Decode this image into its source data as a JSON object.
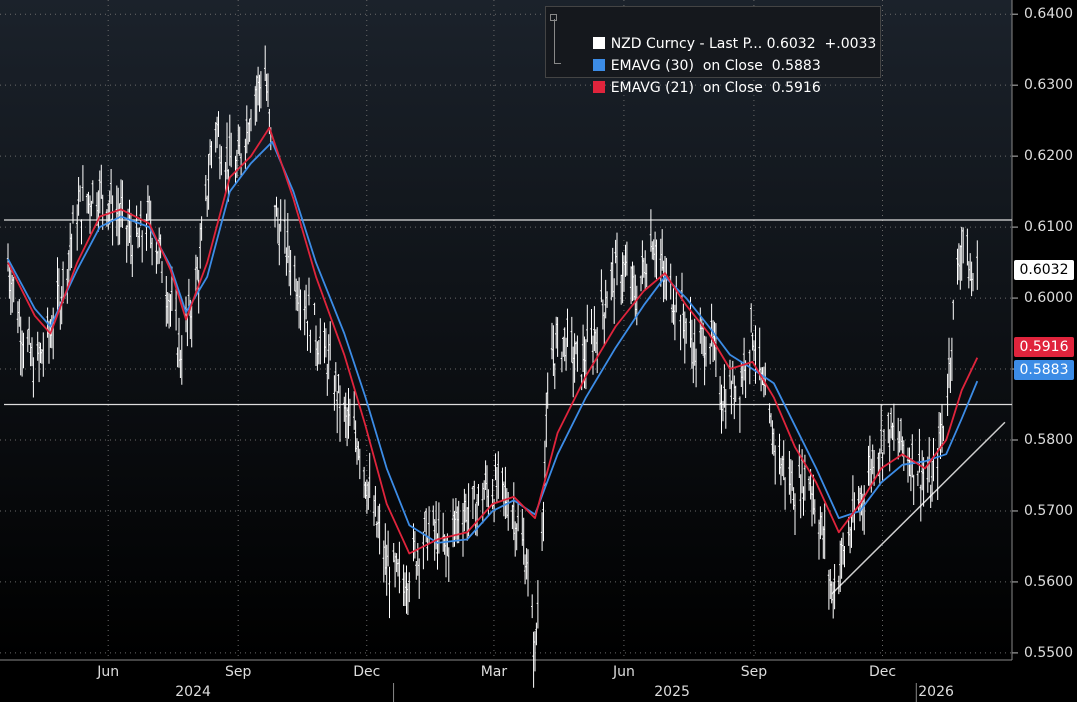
{
  "legend": {
    "row1": "NZD Curncy - Last P... 0.6032  +.0033",
    "row2": "EMAVG (30)  on Close  0.5883",
    "row3": "EMAVG (21)  on Close  0.5916"
  },
  "tags": {
    "last": "0.6032",
    "ema21": "0.5916",
    "ema30": "0.5883"
  },
  "colors": {
    "background": "#000000",
    "price": "#ffffff",
    "ema30": "#3c8ce6",
    "ema21": "#e0243c",
    "grid": "#6a6a6a",
    "reference_lines": "#dddddd"
  },
  "chart_data": {
    "type": "line",
    "title": "",
    "ylim": [
      0.549,
      0.642
    ],
    "y_ticks": [
      "0.5500",
      "0.5600",
      "0.5700",
      "0.5800",
      "0.5900",
      "0.6000",
      "0.6100",
      "0.6200",
      "0.6300",
      "0.6400"
    ],
    "x_ticks": [
      "Jun",
      "Sep",
      "Dec",
      "Mar",
      "Jun",
      "Sep",
      "Dec"
    ],
    "x_years": [
      "2024",
      "2025",
      "2026"
    ],
    "grid": true,
    "legend_position": "top-right",
    "horizontal_lines": [
      0.611,
      0.585
    ],
    "trendline": [
      {
        "x": "2025-11-05",
        "y": 0.5583
      },
      {
        "x": "2026-02-20",
        "y": 0.5825
      }
    ],
    "series": [
      {
        "name": "NZD Curncy - Last Price",
        "points": [
          [
            "2024-04-01",
            0.605
          ],
          [
            "2024-04-10",
            0.596
          ],
          [
            "2024-04-20",
            0.5895
          ],
          [
            "2024-05-01",
            0.595
          ],
          [
            "2024-05-10",
            0.602
          ],
          [
            "2024-05-20",
            0.612
          ],
          [
            "2024-06-01",
            0.615
          ],
          [
            "2024-06-10",
            0.614
          ],
          [
            "2024-06-20",
            0.611
          ],
          [
            "2024-07-01",
            0.607
          ],
          [
            "2024-07-10",
            0.611
          ],
          [
            "2024-07-20",
            0.604
          ],
          [
            "2024-08-01",
            0.592
          ],
          [
            "2024-08-06",
            0.596
          ],
          [
            "2024-08-15",
            0.605
          ],
          [
            "2024-08-25",
            0.625
          ],
          [
            "2024-09-01",
            0.62
          ],
          [
            "2024-09-10",
            0.618
          ],
          [
            "2024-09-20",
            0.627
          ],
          [
            "2024-09-30",
            0.632
          ],
          [
            "2024-10-08",
            0.611
          ],
          [
            "2024-10-20",
            0.604
          ],
          [
            "2024-11-01",
            0.597
          ],
          [
            "2024-11-15",
            0.59
          ],
          [
            "2024-11-25",
            0.583
          ],
          [
            "2024-12-05",
            0.58
          ],
          [
            "2024-12-15",
            0.57
          ],
          [
            "2024-12-25",
            0.562
          ],
          [
            "2025-01-05",
            0.5595
          ],
          [
            "2025-01-15",
            0.564
          ],
          [
            "2025-01-25",
            0.5675
          ],
          [
            "2025-02-05",
            0.564
          ],
          [
            "2025-02-15",
            0.57
          ],
          [
            "2025-02-25",
            0.57
          ],
          [
            "2025-03-05",
            0.573
          ],
          [
            "2025-03-15",
            0.573
          ],
          [
            "2025-03-25",
            0.57
          ],
          [
            "2025-04-03",
            0.563
          ],
          [
            "2025-04-09",
            0.549
          ],
          [
            "2025-04-20",
            0.592
          ],
          [
            "2025-05-01",
            0.594
          ],
          [
            "2025-05-10",
            0.59
          ],
          [
            "2025-05-20",
            0.594
          ],
          [
            "2025-06-01",
            0.602
          ],
          [
            "2025-06-10",
            0.604
          ],
          [
            "2025-06-20",
            0.6
          ],
          [
            "2025-07-01",
            0.609
          ],
          [
            "2025-07-10",
            0.602
          ],
          [
            "2025-07-20",
            0.599
          ],
          [
            "2025-08-01",
            0.592
          ],
          [
            "2025-08-10",
            0.595
          ],
          [
            "2025-08-20",
            0.586
          ],
          [
            "2025-09-01",
            0.588
          ],
          [
            "2025-09-10",
            0.596
          ],
          [
            "2025-09-20",
            0.583
          ],
          [
            "2025-10-01",
            0.576
          ],
          [
            "2025-10-10",
            0.573
          ],
          [
            "2025-10-20",
            0.575
          ],
          [
            "2025-11-01",
            0.564
          ],
          [
            "2025-11-05",
            0.5583
          ],
          [
            "2025-11-15",
            0.565
          ],
          [
            "2025-11-25",
            0.571
          ],
          [
            "2025-12-05",
            0.578
          ],
          [
            "2025-12-15",
            0.581
          ],
          [
            "2025-12-25",
            0.579
          ],
          [
            "2026-01-05",
            0.576
          ],
          [
            "2026-01-15",
            0.573
          ],
          [
            "2026-01-25",
            0.585
          ],
          [
            "2026-02-01",
            0.602
          ],
          [
            "2026-02-06",
            0.609
          ],
          [
            "2026-02-12",
            0.602
          ],
          [
            "2026-02-16",
            0.6032
          ]
        ]
      },
      {
        "name": "EMAVG (30) on Close",
        "points": [
          [
            "2024-04-01",
            0.6055
          ],
          [
            "2024-04-20",
            0.5985
          ],
          [
            "2024-05-01",
            0.596
          ],
          [
            "2024-05-20",
            0.604
          ],
          [
            "2024-06-05",
            0.61
          ],
          [
            "2024-06-20",
            0.6115
          ],
          [
            "2024-07-10",
            0.61
          ],
          [
            "2024-07-25",
            0.6045
          ],
          [
            "2024-08-05",
            0.598
          ],
          [
            "2024-08-20",
            0.603
          ],
          [
            "2024-09-05",
            0.615
          ],
          [
            "2024-09-20",
            0.619
          ],
          [
            "2024-10-05",
            0.622
          ],
          [
            "2024-10-20",
            0.615
          ],
          [
            "2024-11-05",
            0.605
          ],
          [
            "2024-11-25",
            0.595
          ],
          [
            "2024-12-10",
            0.586
          ],
          [
            "2024-12-25",
            0.576
          ],
          [
            "2025-01-10",
            0.568
          ],
          [
            "2025-01-30",
            0.5655
          ],
          [
            "2025-02-20",
            0.566
          ],
          [
            "2025-03-10",
            0.57
          ],
          [
            "2025-03-25",
            0.5715
          ],
          [
            "2025-04-09",
            0.5695
          ],
          [
            "2025-04-25",
            0.578
          ],
          [
            "2025-05-15",
            0.586
          ],
          [
            "2025-06-05",
            0.593
          ],
          [
            "2025-06-25",
            0.599
          ],
          [
            "2025-07-10",
            0.603
          ],
          [
            "2025-07-25",
            0.6
          ],
          [
            "2025-08-10",
            0.596
          ],
          [
            "2025-08-25",
            0.592
          ],
          [
            "2025-09-10",
            0.59
          ],
          [
            "2025-09-25",
            0.588
          ],
          [
            "2025-10-10",
            0.582
          ],
          [
            "2025-10-25",
            0.576
          ],
          [
            "2025-11-10",
            0.569
          ],
          [
            "2025-11-25",
            0.57
          ],
          [
            "2025-12-10",
            0.574
          ],
          [
            "2025-12-25",
            0.5765
          ],
          [
            "2026-01-10",
            0.577
          ],
          [
            "2026-01-25",
            0.578
          ],
          [
            "2026-02-05",
            0.583
          ],
          [
            "2026-02-16",
            0.5883
          ]
        ]
      },
      {
        "name": "EMAVG (21) on Close",
        "points": [
          [
            "2024-04-01",
            0.605
          ],
          [
            "2024-04-20",
            0.5975
          ],
          [
            "2024-05-01",
            0.595
          ],
          [
            "2024-05-20",
            0.605
          ],
          [
            "2024-06-05",
            0.6115
          ],
          [
            "2024-06-20",
            0.6125
          ],
          [
            "2024-07-10",
            0.6105
          ],
          [
            "2024-07-25",
            0.604
          ],
          [
            "2024-08-05",
            0.597
          ],
          [
            "2024-08-20",
            0.605
          ],
          [
            "2024-09-05",
            0.617
          ],
          [
            "2024-09-20",
            0.62
          ],
          [
            "2024-10-03",
            0.624
          ],
          [
            "2024-10-20",
            0.614
          ],
          [
            "2024-11-05",
            0.603
          ],
          [
            "2024-11-25",
            0.592
          ],
          [
            "2024-12-10",
            0.582
          ],
          [
            "2024-12-25",
            0.571
          ],
          [
            "2025-01-10",
            0.564
          ],
          [
            "2025-01-30",
            0.566
          ],
          [
            "2025-02-20",
            0.567
          ],
          [
            "2025-03-10",
            0.571
          ],
          [
            "2025-03-25",
            0.572
          ],
          [
            "2025-04-09",
            0.569
          ],
          [
            "2025-04-25",
            0.581
          ],
          [
            "2025-05-15",
            0.589
          ],
          [
            "2025-06-05",
            0.596
          ],
          [
            "2025-06-25",
            0.601
          ],
          [
            "2025-07-10",
            0.6035
          ],
          [
            "2025-07-25",
            0.599
          ],
          [
            "2025-08-10",
            0.595
          ],
          [
            "2025-08-25",
            0.59
          ],
          [
            "2025-09-10",
            0.591
          ],
          [
            "2025-09-25",
            0.586
          ],
          [
            "2025-10-10",
            0.579
          ],
          [
            "2025-10-25",
            0.574
          ],
          [
            "2025-11-10",
            0.567
          ],
          [
            "2025-11-25",
            0.571
          ],
          [
            "2025-12-10",
            0.576
          ],
          [
            "2025-12-25",
            0.578
          ],
          [
            "2026-01-10",
            0.576
          ],
          [
            "2026-01-25",
            0.58
          ],
          [
            "2026-02-05",
            0.587
          ],
          [
            "2026-02-16",
            0.5916
          ]
        ]
      }
    ]
  }
}
